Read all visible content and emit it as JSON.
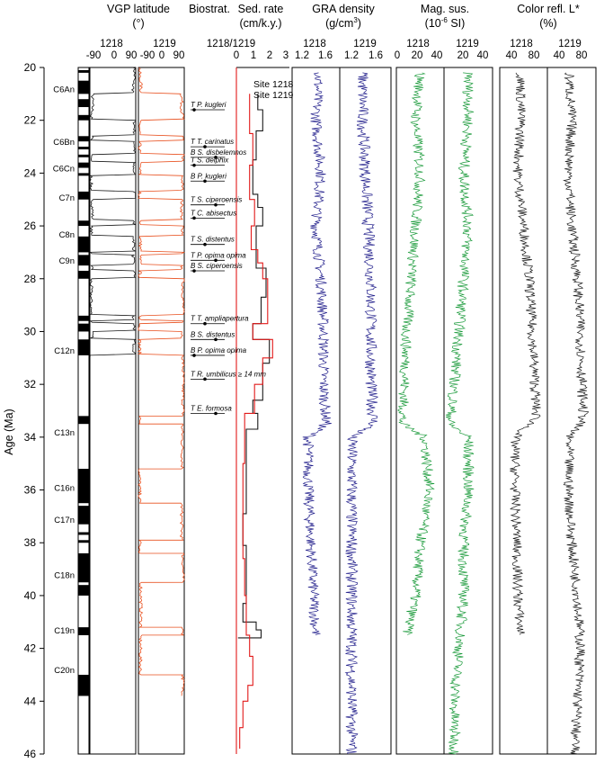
{
  "chart_data": {
    "type": "line",
    "y_axis": {
      "label": "Age (Ma)",
      "range": [
        20,
        46
      ],
      "ticks": [
        20,
        22,
        24,
        26,
        28,
        30,
        32,
        34,
        36,
        38,
        40,
        42,
        44,
        46
      ]
    },
    "polarity_chrons": [
      {
        "label": "C6An",
        "age": 20.8
      },
      {
        "label": "C6Bn",
        "age": 22.8
      },
      {
        "label": "C6Cn",
        "age": 23.8
      },
      {
        "label": "C7n",
        "age": 24.9
      },
      {
        "label": "C8n",
        "age": 26.3
      },
      {
        "label": "C9n",
        "age": 27.3
      },
      {
        "label": "C12n",
        "age": 30.7
      },
      {
        "label": "C13n",
        "age": 33.8
      },
      {
        "label": "C16n",
        "age": 35.9
      },
      {
        "label": "C17n",
        "age": 37.1
      },
      {
        "label": "C18n",
        "age": 39.2
      },
      {
        "label": "C19n",
        "age": 41.3
      },
      {
        "label": "C20n",
        "age": 42.8
      }
    ],
    "normal_polarity_intervals": [
      [
        20.1,
        20.2
      ],
      [
        20.5,
        21.0
      ],
      [
        21.2,
        21.5
      ],
      [
        21.8,
        22.0
      ],
      [
        22.6,
        22.8
      ],
      [
        23.0,
        23.1
      ],
      [
        23.3,
        23.4
      ],
      [
        23.6,
        23.8
      ],
      [
        24.0,
        24.1
      ],
      [
        24.7,
        25.0
      ],
      [
        25.8,
        26.0
      ],
      [
        26.4,
        27.0
      ],
      [
        27.1,
        27.5
      ],
      [
        27.7,
        28.0
      ],
      [
        29.4,
        29.6
      ],
      [
        29.7,
        30.0
      ],
      [
        30.3,
        30.9
      ],
      [
        33.2,
        33.5
      ],
      [
        35.2,
        36.5
      ],
      [
        36.6,
        37.3
      ],
      [
        37.6,
        37.7
      ],
      [
        37.9,
        38.0
      ],
      [
        38.4,
        39.5
      ],
      [
        39.6,
        40.0
      ],
      [
        41.2,
        41.5
      ],
      [
        43.0,
        43.8
      ]
    ],
    "panels": [
      {
        "title": "VGP latitude",
        "unit": "(°)",
        "sites": [
          "1218",
          "1219"
        ],
        "tick_labels_1218": [
          "-90",
          "0",
          "90"
        ],
        "tick_labels_1219": [
          "-90",
          "0",
          "90"
        ],
        "xlim": [
          -90,
          90
        ],
        "series": [
          {
            "name": "1218",
            "color": "#1a1a1a",
            "x": [
              85,
              80,
              -80,
              -85,
              85,
              -82,
              85,
              -85,
              82,
              -85,
              84,
              -80,
              85,
              -85,
              83,
              -84,
              80,
              -82,
              85,
              -85,
              82,
              -84,
              85,
              -82,
              84,
              -85,
              85
            ],
            "age": [
              20,
              20.5,
              21.0,
              21.8,
              22.0,
              22.6,
              22.8,
              23.3,
              23.6,
              24.1,
              24.7,
              25.0,
              25.8,
              26.0,
              26.4,
              27.0,
              27.1,
              27.5,
              27.7,
              28.0,
              29.4,
              29.6,
              29.7,
              30.0,
              30.3,
              30.9,
              31.0
            ]
          },
          {
            "name": "1219",
            "color": "#e8501f",
            "x": [
              -85,
              -80,
              80,
              85,
              -85,
              82,
              -85,
              85,
              -84,
              82,
              -85,
              80,
              -85,
              84,
              -82,
              85,
              -83,
              80,
              -84,
              85,
              -82,
              84,
              -85,
              82,
              -85,
              85,
              -84,
              82,
              -85,
              80,
              -84,
              85,
              -80,
              83,
              -82,
              85,
              -85
            ],
            "age": [
              20,
              20.5,
              21.0,
              21.8,
              22.0,
              22.6,
              22.8,
              23.3,
              23.6,
              24.1,
              24.7,
              25.0,
              25.8,
              26.0,
              26.4,
              27.0,
              27.1,
              27.5,
              27.7,
              28.0,
              29.4,
              29.6,
              29.7,
              30.0,
              30.3,
              30.9,
              33.2,
              33.5,
              35.2,
              36.5,
              37.9,
              38.4,
              39.5,
              41.2,
              41.5,
              43.0,
              43.8
            ]
          }
        ]
      },
      {
        "title": "Biostrat.",
        "events": [
          {
            "label": "T P. kugleri",
            "age": 21.5
          },
          {
            "label": "T T. carinatus",
            "age": 22.9
          },
          {
            "label": "B S. disbelemnos",
            "age": 23.3
          },
          {
            "label": "T S. delphix",
            "age": 23.6
          },
          {
            "label": "B P. kugleri",
            "age": 24.2
          },
          {
            "label": "T S. ciperoensis",
            "age": 25.1
          },
          {
            "label": "T C. abisectus",
            "age": 25.6
          },
          {
            "label": "T S. distentus",
            "age": 26.6
          },
          {
            "label": "T P. opima opima",
            "age": 27.2
          },
          {
            "label": "B S. ciperoensis",
            "age": 27.6
          },
          {
            "label": "T T. ampliapertura",
            "age": 29.6
          },
          {
            "label": "B S. distentus",
            "age": 30.2
          },
          {
            "label": "B P. opima opima",
            "age": 30.8
          },
          {
            "label": "T R. umbilicus ≥ 14 mm",
            "age": 31.7
          },
          {
            "label": "T E. formosa",
            "age": 33.0
          }
        ]
      },
      {
        "title": "Sed. rate",
        "unit": "(cm/k.y.)",
        "sites": [
          "1218/1219"
        ],
        "tick_labels": [
          "0",
          "1",
          "2",
          "3"
        ],
        "xlim": [
          0,
          3
        ],
        "legend": [
          "Site 1218",
          "Site 1219"
        ],
        "series": [
          {
            "name": "Site 1218",
            "color": "#1a1a1a",
            "x": [
              1.3,
              1.3,
              1.6,
              1.6,
              1.2,
              1.2,
              1.0,
              1.0,
              1.3,
              1.3,
              1.6,
              1.6,
              1.2,
              1.2,
              1.8,
              1.8,
              1.5,
              1.5,
              1.0,
              1.0,
              2.0,
              2.0,
              1.6,
              1.6,
              1.0,
              1.0,
              1.3,
              1.3,
              0.6,
              0.6,
              0.4,
              0.4,
              0.6,
              0.6,
              0.4,
              0.4,
              1.2,
              1.2,
              1.5,
              1.5,
              0.1
            ],
            "age": [
              21.0,
              21.6,
              21.6,
              22.4,
              22.4,
              23.5,
              23.5,
              24.8,
              24.8,
              25.3,
              25.3,
              26.0,
              26.0,
              27.6,
              27.6,
              28.7,
              28.7,
              29.7,
              29.7,
              30.3,
              30.3,
              31.2,
              31.2,
              32.6,
              32.6,
              33.1,
              33.1,
              33.7,
              33.7,
              36.9,
              36.9,
              38.1,
              38.1,
              40.3,
              40.3,
              41.0,
              41.0,
              41.3,
              41.3,
              41.6,
              41.6
            ]
          },
          {
            "name": "Site 1219",
            "color": "#e21a1a",
            "x": [
              0.8,
              0.8,
              1.0,
              1.0,
              0.8,
              0.8,
              1.1,
              1.1,
              0.9,
              0.9,
              1.3,
              1.3,
              1.6,
              1.6,
              1.9,
              1.9,
              1.0,
              1.0,
              2.2,
              2.2,
              1.6,
              1.6,
              1.1,
              1.1,
              0.5,
              0.5,
              0.4,
              0.4,
              0.5,
              0.5,
              0.6,
              0.6,
              0.8,
              0.8,
              1.0,
              1.0,
              0.7,
              0.7,
              0.4,
              0.4,
              0.2,
              0.2
            ],
            "age": [
              21.0,
              22.5,
              22.5,
              23.7,
              23.7,
              25.0,
              25.0,
              26.0,
              26.0,
              26.9,
              26.9,
              27.4,
              27.4,
              28.0,
              28.0,
              29.7,
              29.7,
              30.3,
              30.3,
              31.0,
              31.0,
              32.0,
              32.0,
              33.1,
              33.1,
              35.0,
              35.0,
              38.6,
              38.6,
              40.0,
              40.0,
              41.5,
              41.5,
              42.3,
              42.3,
              43.4,
              43.4,
              44.0,
              44.0,
              45.0,
              45.0,
              45.8
            ]
          }
        ]
      },
      {
        "title": "GRA density",
        "unit": "(g/cm³)",
        "sites": [
          "1218",
          "1219"
        ],
        "tick_labels": [
          "1.2",
          "1.6"
        ],
        "xlim": [
          1.0,
          1.9
        ],
        "color": "#23208c",
        "series": [
          {
            "name": "1218",
            "age": [
              20.2,
              22,
              24,
              26,
              28,
              30,
              32,
              33.5,
              34,
              36,
              38,
              40,
              41.5
            ],
            "x": [
              1.5,
              1.45,
              1.55,
              1.45,
              1.55,
              1.6,
              1.6,
              1.65,
              1.3,
              1.3,
              1.35,
              1.4,
              1.45
            ]
          },
          {
            "name": "1219",
            "age": [
              20.2,
              22,
              24,
              26,
              28,
              30,
              32,
              33.5,
              34,
              36,
              38,
              40,
              42,
              44,
              46
            ],
            "x": [
              1.4,
              1.4,
              1.45,
              1.5,
              1.55,
              1.55,
              1.55,
              1.6,
              1.2,
              1.2,
              1.2,
              1.2,
              1.2,
              1.2,
              1.2
            ]
          }
        ]
      },
      {
        "title": "Mag. sus.",
        "unit": "(10⁻⁶ SI)",
        "sites": [
          "1218",
          "1219"
        ],
        "tick_labels_1218": [
          "0",
          "20",
          "40"
        ],
        "tick_labels_1219": [
          "20",
          "40"
        ],
        "xlim": [
          0,
          50
        ],
        "color": "#1a9a3a",
        "series": [
          {
            "name": "1218",
            "age": [
              20.2,
              22,
              24,
              26,
              28,
              30,
              32,
              33.5,
              34,
              36,
              38,
              40,
              41.5
            ],
            "x": [
              25,
              20,
              25,
              20,
              15,
              10,
              8,
              5,
              30,
              35,
              25,
              20,
              10
            ]
          },
          {
            "name": "1219",
            "age": [
              20.2,
              22,
              24,
              26,
              28,
              30,
              32,
              33.5,
              34,
              36,
              38,
              40,
              42,
              44,
              46
            ],
            "x": [
              25,
              25,
              20,
              25,
              20,
              15,
              10,
              5,
              25,
              25,
              20,
              20,
              15,
              10,
              10
            ]
          }
        ]
      },
      {
        "title": "Color refl. L*",
        "unit": "(%)",
        "sites": [
          "1218",
          "1219"
        ],
        "tick_labels_1218": [
          "40",
          "80"
        ],
        "tick_labels_1219": [
          "40",
          "80"
        ],
        "xlim": [
          20,
          100
        ],
        "color": "#1a1a1a",
        "series": [
          {
            "name": "1218",
            "age": [
              20.2,
              22,
              24,
              26,
              28,
              30,
              32,
              33.3,
              34,
              36,
              38,
              40,
              41.5
            ],
            "x": [
              55,
              55,
              50,
              60,
              70,
              75,
              80,
              82,
              45,
              45,
              48,
              50,
              55
            ]
          },
          {
            "name": "1219",
            "age": [
              20.2,
              22,
              24,
              26,
              28,
              30,
              32,
              33.3,
              34,
              36,
              38,
              40,
              42,
              44,
              46
            ],
            "x": [
              55,
              60,
              55,
              60,
              70,
              75,
              78,
              80,
              55,
              55,
              60,
              70,
              75,
              70,
              65
            ]
          }
        ]
      }
    ]
  }
}
